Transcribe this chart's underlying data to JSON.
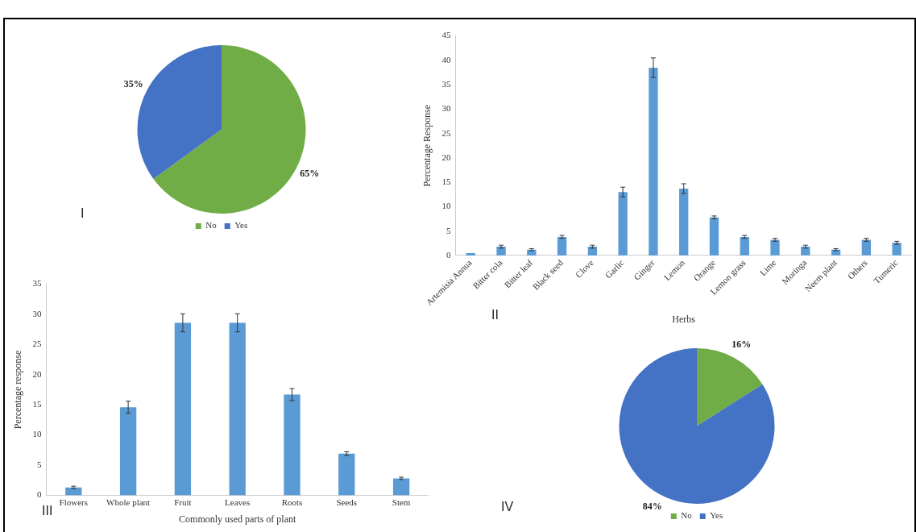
{
  "chart_data": [
    {
      "type": "pie",
      "categories": [
        "No",
        "Yes"
      ],
      "values": [
        65,
        35
      ],
      "colors": [
        "#70ad47",
        "#4472c4"
      ],
      "value_labels": [
        "65%",
        "35%"
      ],
      "legend": "bottom",
      "annotations": [
        "I"
      ]
    },
    {
      "type": "bar",
      "xlabel": "Herbs",
      "ylabel": "Percentage Response",
      "categories": [
        "Artemisia Annua",
        "Bitter cola",
        "Bitter leaf",
        "Black seed",
        "Clove",
        "Garlic",
        "Ginger",
        "Lemon",
        "Orange",
        "Lemon grass",
        "Lime",
        "Moringa",
        "Neem plant",
        "Others",
        "Tumeric"
      ],
      "values": [
        0.5,
        1.8,
        1.2,
        3.8,
        1.8,
        13,
        38.5,
        13.7,
        7.8,
        3.8,
        3.2,
        1.8,
        1.2,
        3.2,
        2.6
      ],
      "errors": [
        null,
        0.3,
        0.2,
        0.3,
        0.3,
        1,
        2,
        1,
        0.3,
        0.3,
        0.3,
        0.3,
        0.2,
        0.3,
        0.3
      ],
      "color": "#5b9bd5",
      "ylim": [
        0,
        45
      ],
      "yticks": [
        0,
        5,
        10,
        15,
        20,
        25,
        30,
        35,
        40,
        45
      ],
      "grid": false,
      "annotations": [
        "II"
      ]
    },
    {
      "type": "bar",
      "xlabel": "Commonly used parts of plant",
      "ylabel": "Percentage response",
      "categories": [
        "Flowers",
        "Whole plant",
        "Fruit",
        "Leaves",
        "Roots",
        "Seeds",
        "Stem"
      ],
      "values": [
        1.3,
        14.6,
        28.6,
        28.6,
        16.7,
        6.9,
        2.8
      ],
      "errors": [
        0.2,
        1,
        1.5,
        1.5,
        1,
        0.3,
        0.2
      ],
      "color": "#5b9bd5",
      "ylim": [
        0,
        35
      ],
      "yticks": [
        0,
        5,
        10,
        15,
        20,
        25,
        30,
        35
      ],
      "grid": false,
      "annotations": [
        "III"
      ]
    },
    {
      "type": "pie",
      "categories": [
        "No",
        "Yes"
      ],
      "values": [
        16,
        84
      ],
      "colors": [
        "#70ad47",
        "#4472c4"
      ],
      "value_labels": [
        "16%",
        "84%"
      ],
      "legend": "bottom",
      "annotations": [
        "IV"
      ]
    }
  ]
}
